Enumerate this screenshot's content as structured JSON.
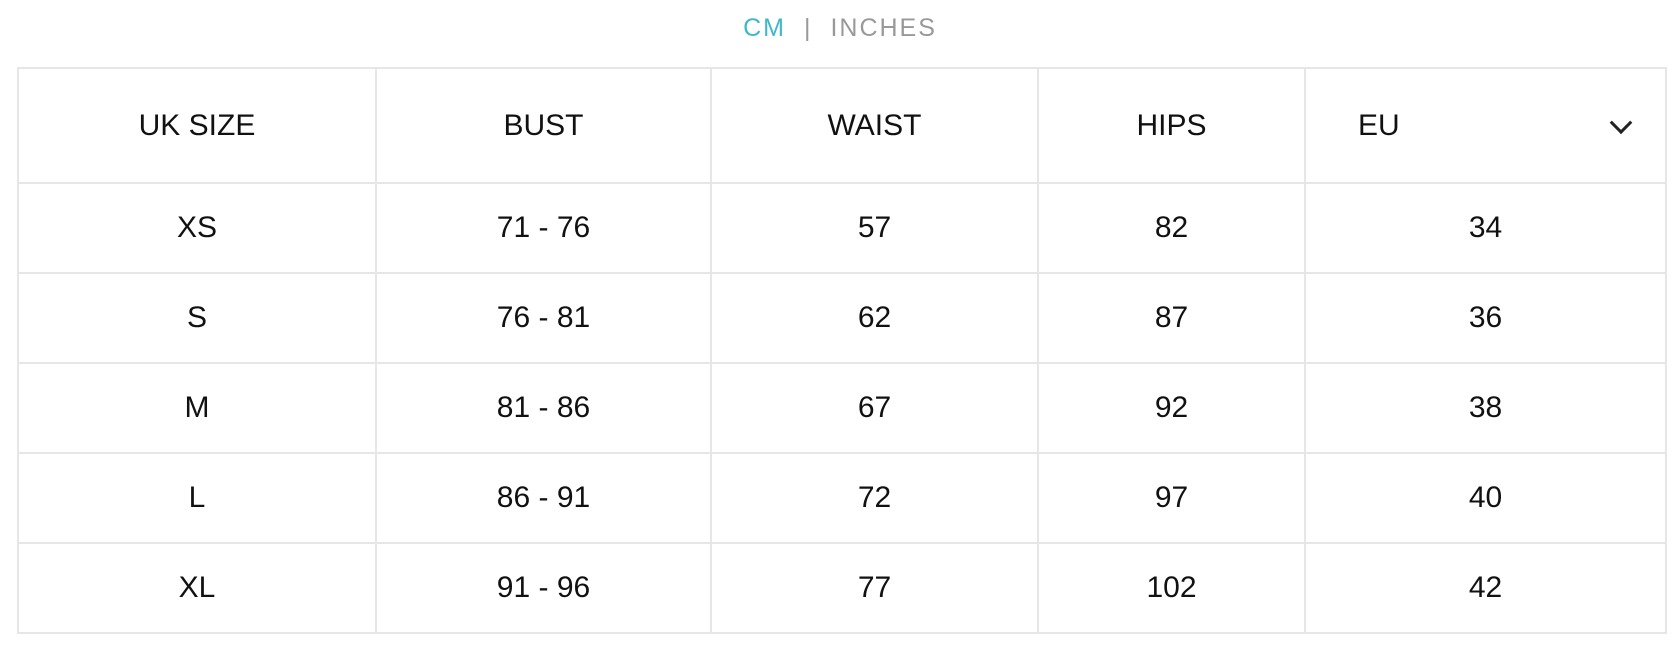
{
  "unit_toggle": {
    "cm": "CM",
    "separator": "|",
    "inches": "INCHES",
    "active": "CM",
    "active_color": "#3fb8c9"
  },
  "table": {
    "headers": [
      "UK SIZE",
      "BUST",
      "WAIST",
      "HIPS"
    ],
    "region_select": {
      "value": "EU",
      "icon": "chevron-down-icon"
    },
    "rows": [
      [
        "XS",
        "71 - 76",
        "57",
        "82",
        "34"
      ],
      [
        "S",
        "76 - 81",
        "62",
        "87",
        "36"
      ],
      [
        "M",
        "81 - 86",
        "67",
        "92",
        "38"
      ],
      [
        "L",
        "86 - 91",
        "72",
        "97",
        "40"
      ],
      [
        "XL",
        "91 - 96",
        "77",
        "102",
        "42"
      ]
    ]
  }
}
